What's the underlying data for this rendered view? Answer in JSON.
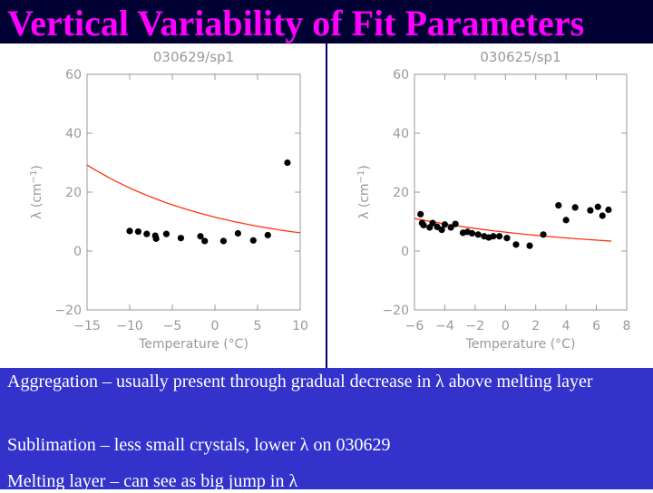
{
  "slide": {
    "title": "Vertical Variability of Fit Parameters",
    "bullets": [
      "Aggregation – usually present through gradual decrease in λ above melting layer",
      "Sublimation – less small crystals, lower λ on 030629",
      "Melting layer – can see as big jump in λ"
    ]
  },
  "colors": {
    "title": "#ff00ff",
    "title_bg": "#000033",
    "bullet_bg": "#3333cc",
    "axis": "#999999",
    "fit": "#ff3311",
    "points": "#000000"
  },
  "chart_data": [
    {
      "type": "scatter",
      "title": "030629/sp1",
      "xlabel": "Temperature (°C)",
      "ylabel": "λ (cm",
      "ylabel_sup": "−1",
      "ylabel_close": ")",
      "xlim": [
        -15,
        10
      ],
      "ylim": [
        -20,
        60
      ],
      "xticks": [
        -15,
        -10,
        -5,
        0,
        5,
        10
      ],
      "xtick_labels": [
        "−15",
        "−10",
        "−5",
        "0",
        "5",
        "10"
      ],
      "yticks": [
        -20,
        0,
        20,
        40,
        60
      ],
      "ytick_labels": [
        "−20",
        "0",
        "20",
        "40",
        "60"
      ],
      "points": [
        {
          "x": -10.0,
          "y": 6.8
        },
        {
          "x": -9.0,
          "y": 6.6
        },
        {
          "x": -8.0,
          "y": 5.8
        },
        {
          "x": -7.0,
          "y": 5.2
        },
        {
          "x": -6.9,
          "y": 4.2
        },
        {
          "x": -5.7,
          "y": 5.8
        },
        {
          "x": -4.0,
          "y": 4.4
        },
        {
          "x": -1.7,
          "y": 5.0
        },
        {
          "x": -1.2,
          "y": 3.4
        },
        {
          "x": 1.0,
          "y": 3.4
        },
        {
          "x": 2.7,
          "y": 6.0
        },
        {
          "x": 4.5,
          "y": 3.6
        },
        {
          "x": 6.2,
          "y": 5.4
        },
        {
          "x": 8.5,
          "y": 30.0
        }
      ],
      "fit": {
        "type": "exponential",
        "a": 11.5,
        "b": -0.0622,
        "x_from": -15,
        "x_to": 10
      }
    },
    {
      "type": "scatter",
      "title": "030625/sp1",
      "xlabel": "Temperature (°C)",
      "ylabel": "λ (cm",
      "ylabel_sup": "−1",
      "ylabel_close": ")",
      "xlim": [
        -6,
        8
      ],
      "ylim": [
        -20,
        60
      ],
      "xticks": [
        -6,
        -4,
        -2,
        0,
        2,
        4,
        6,
        8
      ],
      "xtick_labels": [
        "−6",
        "−4",
        "−2",
        "0",
        "2",
        "4",
        "6",
        "8"
      ],
      "yticks": [
        -20,
        0,
        20,
        40,
        60
      ],
      "ytick_labels": [
        "−20",
        "0",
        "20",
        "40",
        "60"
      ],
      "points": [
        {
          "x": -5.6,
          "y": 12.5
        },
        {
          "x": -5.5,
          "y": 9.5
        },
        {
          "x": -5.4,
          "y": 8.8
        },
        {
          "x": -5.0,
          "y": 8.0
        },
        {
          "x": -4.8,
          "y": 9.5
        },
        {
          "x": -4.5,
          "y": 8.2
        },
        {
          "x": -4.2,
          "y": 7.2
        },
        {
          "x": -4.0,
          "y": 9.0
        },
        {
          "x": -3.6,
          "y": 8.0
        },
        {
          "x": -3.3,
          "y": 9.2
        },
        {
          "x": -2.8,
          "y": 6.2
        },
        {
          "x": -2.5,
          "y": 6.5
        },
        {
          "x": -2.2,
          "y": 6.0
        },
        {
          "x": -1.8,
          "y": 5.6
        },
        {
          "x": -1.4,
          "y": 5.0
        },
        {
          "x": -1.1,
          "y": 4.6
        },
        {
          "x": -0.8,
          "y": 5.0
        },
        {
          "x": -0.4,
          "y": 5.0
        },
        {
          "x": 0.1,
          "y": 4.4
        },
        {
          "x": 0.7,
          "y": 2.2
        },
        {
          "x": 1.6,
          "y": 1.8
        },
        {
          "x": 2.5,
          "y": 5.6
        },
        {
          "x": 3.5,
          "y": 15.5
        },
        {
          "x": 4.0,
          "y": 10.5
        },
        {
          "x": 4.6,
          "y": 14.8
        },
        {
          "x": 5.6,
          "y": 13.8
        },
        {
          "x": 6.1,
          "y": 15.0
        },
        {
          "x": 6.4,
          "y": 12.0
        },
        {
          "x": 6.8,
          "y": 14.0
        }
      ],
      "fit": {
        "type": "exponential",
        "a": 6.4,
        "b": -0.0908,
        "x_from": -6,
        "x_to": 7
      }
    }
  ]
}
